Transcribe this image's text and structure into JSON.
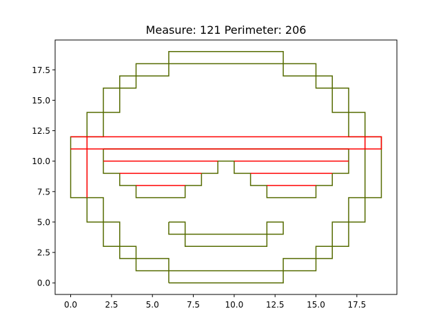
{
  "chart_data": {
    "type": "line",
    "title": "Measure: 121 Perimeter: 206",
    "xlabel": "",
    "ylabel": "",
    "xlim": [
      -0.95,
      19.95
    ],
    "ylim": [
      -0.95,
      19.95
    ],
    "xticks": [
      0.0,
      2.5,
      5.0,
      7.5,
      10.0,
      12.5,
      15.0,
      17.5
    ],
    "xtick_labels": [
      "0.0",
      "2.5",
      "5.0",
      "7.5",
      "10.0",
      "12.5",
      "15.0",
      "17.5"
    ],
    "yticks": [
      0.0,
      2.5,
      5.0,
      7.5,
      10.0,
      12.5,
      15.0,
      17.5
    ],
    "ytick_labels": [
      "0.0",
      "2.5",
      "5.0",
      "7.5",
      "10.0",
      "12.5",
      "15.0",
      "17.5"
    ],
    "grid": false,
    "colors": {
      "red": "#ff0000",
      "green": "#008000",
      "olive": "#556b00"
    },
    "series": [
      {
        "color": "olive",
        "points": [
          [
            6,
            0
          ],
          [
            13,
            0
          ],
          [
            13,
            1
          ],
          [
            15,
            1
          ],
          [
            15,
            2
          ],
          [
            16,
            2
          ],
          [
            16,
            3
          ],
          [
            17,
            3
          ],
          [
            17,
            5
          ],
          [
            18,
            5
          ],
          [
            18,
            7
          ],
          [
            19,
            7
          ],
          [
            19,
            12
          ],
          [
            18,
            12
          ],
          [
            18,
            14
          ],
          [
            17,
            14
          ],
          [
            17,
            16
          ],
          [
            16,
            16
          ],
          [
            16,
            17
          ],
          [
            15,
            17
          ],
          [
            15,
            18
          ],
          [
            13,
            18
          ],
          [
            13,
            19
          ],
          [
            6,
            19
          ],
          [
            6,
            18
          ],
          [
            4,
            18
          ],
          [
            4,
            17
          ],
          [
            3,
            17
          ],
          [
            3,
            16
          ],
          [
            2,
            16
          ],
          [
            2,
            14
          ],
          [
            1,
            14
          ],
          [
            1,
            12
          ],
          [
            0,
            12
          ],
          [
            0,
            7
          ],
          [
            1,
            7
          ],
          [
            1,
            5
          ],
          [
            2,
            5
          ],
          [
            2,
            3
          ],
          [
            3,
            3
          ],
          [
            3,
            2
          ],
          [
            4,
            2
          ],
          [
            4,
            1
          ],
          [
            6,
            1
          ],
          [
            6,
            0
          ]
        ]
      },
      {
        "color": "olive",
        "points": [
          [
            6,
            1
          ],
          [
            13,
            1
          ],
          [
            13,
            2
          ],
          [
            15,
            2
          ],
          [
            15,
            3
          ],
          [
            16,
            3
          ],
          [
            16,
            5
          ],
          [
            17,
            5
          ],
          [
            17,
            7
          ],
          [
            18,
            7
          ],
          [
            18,
            12
          ],
          [
            17,
            12
          ],
          [
            17,
            14
          ],
          [
            16,
            14
          ],
          [
            16,
            16
          ],
          [
            15,
            16
          ],
          [
            15,
            17
          ],
          [
            13,
            17
          ],
          [
            13,
            18
          ],
          [
            6,
            18
          ],
          [
            6,
            17
          ],
          [
            4,
            17
          ],
          [
            4,
            16
          ],
          [
            3,
            16
          ],
          [
            3,
            14
          ],
          [
            2,
            14
          ],
          [
            2,
            12
          ],
          [
            1,
            12
          ],
          [
            1,
            7
          ],
          [
            2,
            7
          ],
          [
            2,
            5
          ],
          [
            3,
            5
          ],
          [
            3,
            3
          ],
          [
            4,
            3
          ],
          [
            4,
            2
          ],
          [
            6,
            2
          ],
          [
            6,
            1
          ]
        ]
      },
      {
        "color": "olive",
        "points": [
          [
            6,
            5
          ],
          [
            7,
            5
          ],
          [
            7,
            4
          ],
          [
            12,
            4
          ],
          [
            12,
            5
          ],
          [
            13,
            5
          ],
          [
            13,
            4
          ],
          [
            12,
            4
          ],
          [
            12,
            3
          ],
          [
            7,
            3
          ],
          [
            7,
            4
          ],
          [
            6,
            4
          ],
          [
            6,
            5
          ]
        ]
      },
      {
        "color": "olive",
        "points": [
          [
            2,
            11
          ],
          [
            17,
            11
          ],
          [
            17,
            9
          ],
          [
            16,
            9
          ],
          [
            16,
            8
          ],
          [
            15,
            8
          ],
          [
            15,
            7
          ],
          [
            12,
            7
          ],
          [
            12,
            8
          ],
          [
            11,
            8
          ],
          [
            11,
            9
          ],
          [
            10,
            9
          ],
          [
            10,
            10
          ],
          [
            9,
            10
          ],
          [
            9,
            9
          ],
          [
            8,
            9
          ],
          [
            8,
            8
          ],
          [
            7,
            8
          ],
          [
            7,
            7
          ],
          [
            4,
            7
          ],
          [
            4,
            8
          ],
          [
            3,
            8
          ],
          [
            3,
            9
          ],
          [
            2,
            9
          ],
          [
            2,
            11
          ]
        ]
      },
      {
        "color": "red",
        "points": [
          [
            0,
            12
          ],
          [
            19,
            12
          ],
          [
            19,
            11
          ],
          [
            0,
            11
          ]
        ]
      },
      {
        "color": "red",
        "points": [
          [
            1,
            11
          ],
          [
            1,
            12
          ]
        ]
      },
      {
        "color": "red",
        "points": [
          [
            18,
            11
          ],
          [
            18,
            12
          ]
        ]
      },
      {
        "color": "red",
        "points": [
          [
            1,
            7
          ],
          [
            1,
            11
          ]
        ]
      },
      {
        "color": "red",
        "points": [
          [
            2,
            10
          ],
          [
            9,
            10
          ]
        ]
      },
      {
        "color": "red",
        "points": [
          [
            10,
            10
          ],
          [
            17,
            10
          ]
        ]
      },
      {
        "color": "red",
        "points": [
          [
            3,
            9
          ],
          [
            8,
            9
          ]
        ]
      },
      {
        "color": "red",
        "points": [
          [
            11,
            9
          ],
          [
            16,
            9
          ]
        ]
      },
      {
        "color": "red",
        "points": [
          [
            4,
            8
          ],
          [
            7,
            8
          ]
        ]
      },
      {
        "color": "red",
        "points": [
          [
            12,
            8
          ],
          [
            15,
            8
          ]
        ]
      }
    ]
  }
}
